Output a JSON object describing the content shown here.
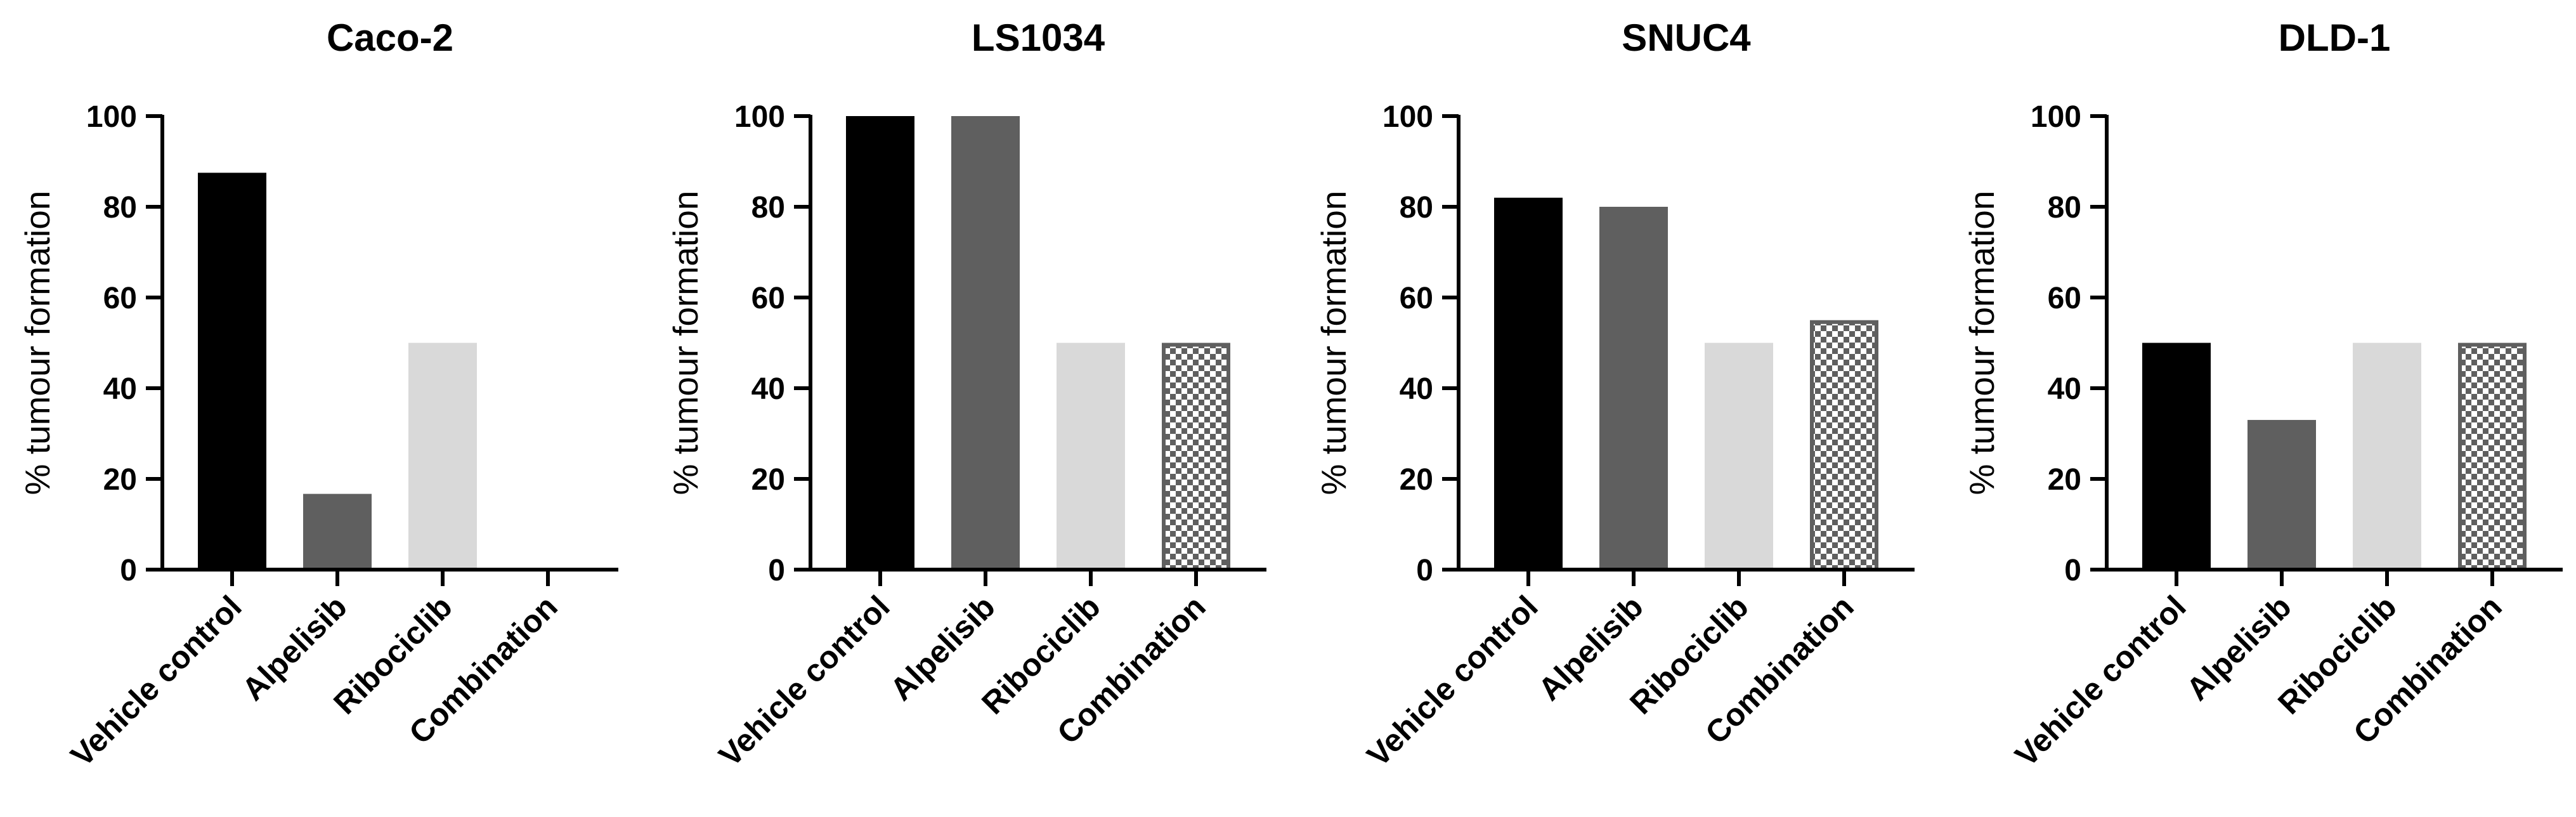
{
  "chart_data": [
    {
      "type": "bar",
      "title": "Caco-2",
      "categories": [
        "Vehicle control",
        "Alpelisib",
        "Ribociclib",
        "Combination"
      ],
      "values": [
        87.5,
        16.7,
        50,
        0
      ],
      "xlabel": "",
      "ylabel": "% tumour formation",
      "ylim": [
        0,
        100
      ],
      "yticks": [
        "0",
        "20",
        "40",
        "60",
        "80",
        "100"
      ]
    },
    {
      "type": "bar",
      "title": "LS1034",
      "categories": [
        "Vehicle control",
        "Alpelisib",
        "Ribociclib",
        "Combination"
      ],
      "values": [
        100,
        100,
        50,
        50
      ],
      "xlabel": "",
      "ylabel": "% tumour formation",
      "ylim": [
        0,
        100
      ],
      "yticks": [
        "0",
        "20",
        "40",
        "60",
        "80",
        "100"
      ]
    },
    {
      "type": "bar",
      "title": "SNUC4",
      "categories": [
        "Vehicle control",
        "Alpelisib",
        "Ribociclib",
        "Combination"
      ],
      "values": [
        82,
        80,
        50,
        55
      ],
      "xlabel": "",
      "ylabel": "% tumour formation",
      "ylim": [
        0,
        100
      ],
      "yticks": [
        "0",
        "20",
        "40",
        "60",
        "80",
        "100"
      ]
    },
    {
      "type": "bar",
      "title": "DLD-1",
      "categories": [
        "Vehicle control",
        "Alpelisib",
        "Ribociclib",
        "Combination"
      ],
      "values": [
        50,
        33,
        50,
        50
      ],
      "xlabel": "",
      "ylabel": "% tumour formation",
      "ylim": [
        0,
        100
      ],
      "yticks": [
        "0",
        "20",
        "40",
        "60",
        "80",
        "100"
      ]
    }
  ],
  "colors": {
    "vehicle": "#000000",
    "alpelisib": "#5f5f5f",
    "ribociclib": "#d9d9d9",
    "combination_dark": "#5f5f5f",
    "combination_light": "#ffffff",
    "axis": "#000000"
  }
}
